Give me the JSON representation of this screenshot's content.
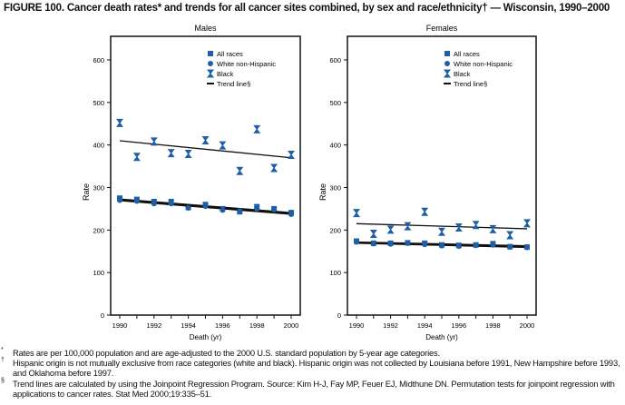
{
  "title": "FIGURE 100. Cancer death rates* and trends for all cancer sites combined, by sex and race/ethnicity† — Wisconsin, 1990–2000",
  "colors": {
    "series": "#1f5fa8",
    "trend": "#111111"
  },
  "chart_data": [
    {
      "type": "scatter",
      "title": "Males",
      "xlabel": "Death (yr)",
      "ylabel": "Rate",
      "ylim": [
        0,
        650
      ],
      "xlim": [
        1990,
        2000
      ],
      "yticks": [
        0,
        100,
        200,
        300,
        400,
        500,
        600
      ],
      "xticks": [
        1990,
        1992,
        1994,
        1996,
        1998,
        2000
      ],
      "x": [
        1990,
        1991,
        1992,
        1993,
        1994,
        1995,
        1996,
        1997,
        1998,
        1999,
        2000
      ],
      "legend_position": "top-right",
      "legend": [
        "All races",
        "White non-Hispanic",
        "Black",
        "Trend line§"
      ],
      "series": [
        {
          "name": "All races",
          "marker": "square",
          "values": [
            275,
            272,
            267,
            267,
            253,
            260,
            250,
            243,
            255,
            250,
            241
          ],
          "trend": [
            272,
            240
          ]
        },
        {
          "name": "White non-Hispanic",
          "marker": "circle",
          "values": [
            270,
            268,
            262,
            262,
            252,
            256,
            247,
            245,
            250,
            248,
            237
          ],
          "trend": [
            270,
            238
          ]
        },
        {
          "name": "Black",
          "marker": "bowtie",
          "values": [
            452,
            372,
            408,
            381,
            379,
            411,
            399,
            339,
            437,
            346,
            377
          ],
          "trend": [
            410,
            370
          ]
        }
      ]
    },
    {
      "type": "scatter",
      "title": "Females",
      "xlabel": "Death (yr)",
      "ylabel": "Rate",
      "ylim": [
        0,
        650
      ],
      "xlim": [
        1990,
        2000
      ],
      "yticks": [
        0,
        100,
        200,
        300,
        400,
        500,
        600
      ],
      "xticks": [
        1990,
        1992,
        1994,
        1996,
        1998,
        2000
      ],
      "x": [
        1990,
        1991,
        1992,
        1993,
        1994,
        1995,
        1996,
        1997,
        1998,
        1999,
        2000
      ],
      "legend_position": "top-right",
      "legend": [
        "All races",
        "White non-Hispanic",
        "Black",
        "Trend line§"
      ],
      "series": [
        {
          "name": "All races",
          "marker": "square",
          "values": [
            174,
            169,
            169,
            170,
            169,
            165,
            164,
            165,
            168,
            161,
            160
          ],
          "trend": [
            171,
            162
          ]
        },
        {
          "name": "White non-Hispanic",
          "marker": "circle",
          "values": [
            172,
            168,
            167,
            169,
            166,
            163,
            162,
            164,
            165,
            160,
            159
          ],
          "trend": [
            170,
            160
          ]
        },
        {
          "name": "Black",
          "marker": "bowtie",
          "values": [
            240,
            191,
            201,
            209,
            243,
            196,
            206,
            212,
            202,
            188,
            216
          ],
          "trend": [
            215,
            203
          ]
        }
      ]
    }
  ],
  "footnotes": [
    {
      "mark": "*",
      "text": "Rates are per 100,000 population and are age-adjusted to the 2000 U.S. standard population by 5-year age categories."
    },
    {
      "mark": "†",
      "text": "Hispanic origin is not mutually exclusive from race categories (white and black). Hispanic origin was not collected by Louisiana before 1991, New Hampshire before 1993, and Oklahoma before 1997."
    },
    {
      "mark": "§",
      "text": "Trend lines are calculated by using the Joinpoint Regression Program. Source: Kim H-J, Fay MP, Feuer EJ, Midthune DN. Permutation tests for joinpoint regression with applications to cancer rates. Stat Med 2000;19:335–51."
    }
  ]
}
